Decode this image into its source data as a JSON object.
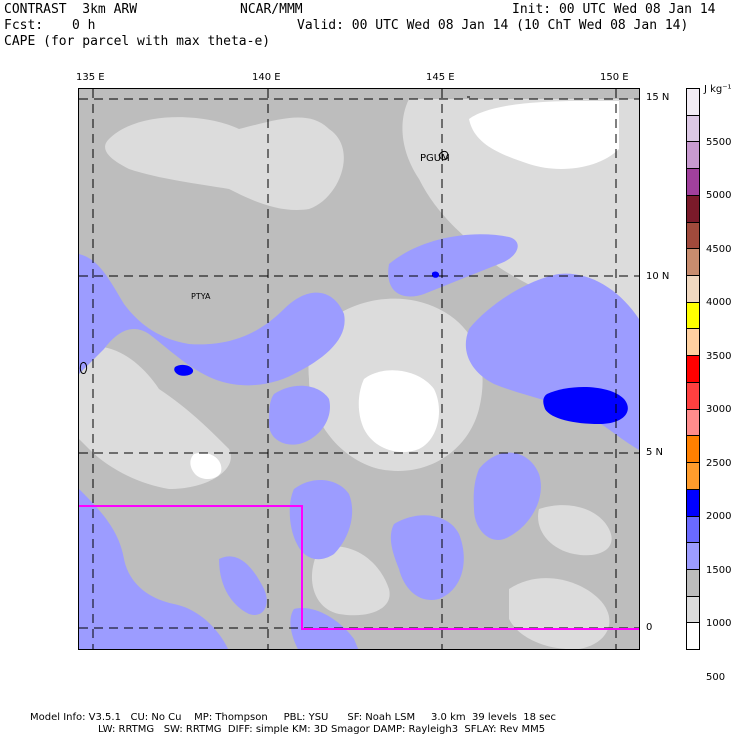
{
  "header": {
    "model": "CONTRAST  3km ARW",
    "org": "NCAR/MMM",
    "init": "Init: 00 UTC Wed 08 Jan 14",
    "fcst_label": "Fcst:",
    "fcst_value": "0 h",
    "valid": "Valid: 00 UTC Wed 08 Jan 14 (10 ChT Wed 08 Jan 14)",
    "field": "CAPE (for parcel with max theta-e)"
  },
  "axes": {
    "lon_labels": [
      "135 E",
      "140 E",
      "145 E",
      "150 E"
    ],
    "lat_labels": [
      "15 N",
      "10 N",
      "5 N",
      "0"
    ]
  },
  "places": [
    {
      "name": "PGUM"
    },
    {
      "name": "PTYA"
    }
  ],
  "colorbar": {
    "units": "J kg⁻¹",
    "labels": [
      "5500",
      "5000",
      "4500",
      "4000",
      "3500",
      "3000",
      "2500",
      "2000",
      "1500",
      "1000",
      "500"
    ],
    "colors": [
      "#f2ecf4",
      "#dcc8e4",
      "#c89ad0",
      "#a0409c",
      "#7a1a2a",
      "#a04a3c",
      "#c88c6e",
      "#f0d8c0",
      "#ffff00",
      "#ffd0a0",
      "#ff0000",
      "#ff4040",
      "#ff8c8c",
      "#ff8000",
      "#ff9c2c",
      "#0000ff",
      "#6a6aff",
      "#9c9cff",
      "#bdbdbd",
      "#dcdcdc",
      "#ffffff"
    ]
  },
  "footer": {
    "line1": "Model Info: V3.5.1   CU: No Cu    MP: Thompson     PBL: YSU      SF: Noah LSM     3.0 km  39 levels  18 sec",
    "line2": "LW: RRTMG   SW: RRTMG  DIFF: simple KM: 3D Smagor DAMP: Rayleigh3  SFLAY: Rev MM5"
  }
}
